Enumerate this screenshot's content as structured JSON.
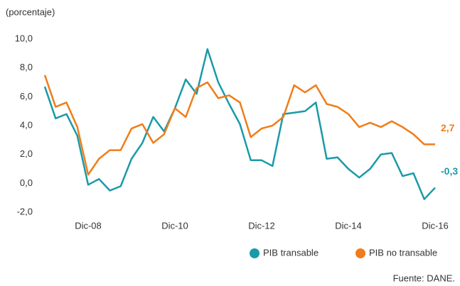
{
  "chart_data": {
    "type": "line",
    "subtitle": "(porcentaje)",
    "source": "Fuente: DANE.",
    "categories": [
      null,
      null,
      null,
      null,
      "Dic-08",
      null,
      null,
      null,
      null,
      null,
      null,
      null,
      "Dic-10",
      null,
      null,
      null,
      null,
      null,
      null,
      null,
      "Dic-12",
      null,
      null,
      null,
      null,
      null,
      null,
      null,
      "Dic-14",
      null,
      null,
      null,
      null,
      null,
      null,
      null,
      "Dic-16"
    ],
    "series": [
      {
        "name": "PIB transable",
        "color": "#1a9aa8",
        "values": [
          6.7,
          4.5,
          4.8,
          3.3,
          -0.1,
          0.3,
          -0.5,
          -0.2,
          1.7,
          2.8,
          4.6,
          3.6,
          5.2,
          7.2,
          6.2,
          9.3,
          7.0,
          5.5,
          4.1,
          1.6,
          1.6,
          1.2,
          4.8,
          4.9,
          5.0,
          5.6,
          1.7,
          1.8,
          1.0,
          0.4,
          1.0,
          2.0,
          2.1,
          0.5,
          0.7,
          -1.1,
          -0.3
        ],
        "value_labels": [
          null,
          null,
          null,
          null,
          null,
          null,
          null,
          null,
          null,
          null,
          null,
          null,
          null,
          null,
          null,
          null,
          null,
          null,
          null,
          null,
          null,
          null,
          null,
          null,
          null,
          null,
          null,
          null,
          null,
          null,
          null,
          null,
          null,
          null,
          null,
          null,
          "-0,3"
        ]
      },
      {
        "name": "PIB no transable",
        "color": "#f07d1a",
        "values": [
          7.5,
          5.3,
          5.6,
          3.9,
          0.6,
          1.7,
          2.3,
          2.3,
          3.8,
          4.1,
          2.8,
          3.4,
          5.2,
          4.6,
          6.6,
          7.0,
          5.9,
          6.1,
          5.6,
          3.2,
          3.8,
          4.0,
          4.6,
          6.8,
          6.3,
          6.8,
          5.5,
          5.3,
          4.8,
          3.9,
          4.2,
          3.9,
          4.3,
          3.9,
          3.4,
          2.7,
          2.7
        ],
        "value_labels": [
          null,
          null,
          null,
          null,
          null,
          null,
          null,
          null,
          null,
          null,
          null,
          null,
          null,
          null,
          null,
          null,
          null,
          null,
          null,
          null,
          null,
          null,
          null,
          null,
          null,
          null,
          null,
          null,
          null,
          null,
          null,
          null,
          null,
          null,
          null,
          null,
          "2,7"
        ]
      }
    ],
    "ylim": [
      -2,
      10
    ],
    "yticks": [
      {
        "value": -2,
        "label": "-2,0"
      },
      {
        "value": 0,
        "label": "0,0"
      },
      {
        "value": 2,
        "label": "2,0"
      },
      {
        "value": 4,
        "label": "4,0"
      },
      {
        "value": 6,
        "label": "6,0"
      },
      {
        "value": 8,
        "label": "8,0"
      },
      {
        "value": 10,
        "label": "10,0"
      }
    ],
    "grid": false,
    "legend": "bottom-right"
  }
}
